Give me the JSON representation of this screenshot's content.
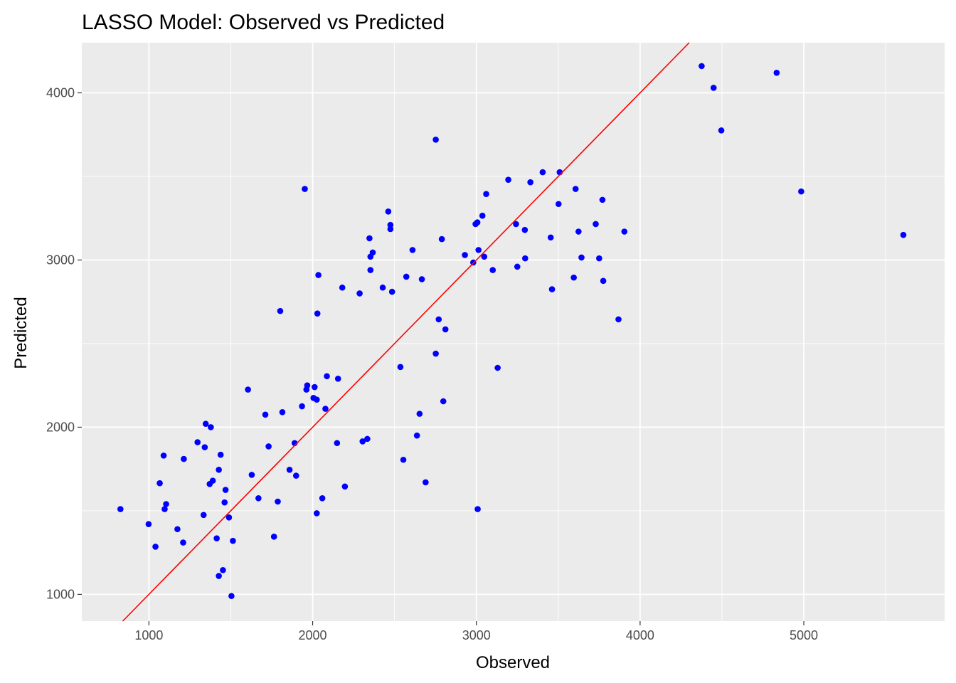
{
  "chart_data": {
    "type": "scatter",
    "title": "LASSO Model: Observed vs Predicted",
    "xlabel": "Observed",
    "ylabel": "Predicted",
    "xlim": [
      590,
      5860
    ],
    "ylim": [
      840,
      4300
    ],
    "x_ticks": [
      1000,
      2000,
      3000,
      4000,
      5000
    ],
    "x_tick_labels": [
      "1000",
      "2000",
      "3000",
      "4000",
      "5000"
    ],
    "y_ticks": [
      1000,
      2000,
      3000,
      4000
    ],
    "y_tick_labels": [
      "1000",
      "2000",
      "3000",
      "4000"
    ],
    "grid": true,
    "background": "#ebebeb",
    "point_color": "#0000ff",
    "line_color": "#ff0000",
    "reference_line": {
      "slope": 1,
      "intercept": 0
    },
    "series": [
      {
        "points": [
          [
            826,
            1510
          ],
          [
            998,
            1420
          ],
          [
            1040,
            1285
          ],
          [
            1066,
            1665
          ],
          [
            1090,
            1830
          ],
          [
            1096,
            1510
          ],
          [
            1105,
            1540
          ],
          [
            1174,
            1390
          ],
          [
            1209,
            1310
          ],
          [
            1213,
            1810
          ],
          [
            1297,
            1910
          ],
          [
            1334,
            1475
          ],
          [
            1341,
            1880
          ],
          [
            1347,
            2020
          ],
          [
            1371,
            1660
          ],
          [
            1378,
            2000
          ],
          [
            1390,
            1680
          ],
          [
            1414,
            1335
          ],
          [
            1427,
            1745
          ],
          [
            1427,
            1110
          ],
          [
            1438,
            1835
          ],
          [
            1452,
            1145
          ],
          [
            1462,
            1550
          ],
          [
            1468,
            1625
          ],
          [
            1489,
            1460
          ],
          [
            1504,
            990
          ],
          [
            1513,
            1320
          ],
          [
            1605,
            2225
          ],
          [
            1628,
            1715
          ],
          [
            1669,
            1575
          ],
          [
            1711,
            2075
          ],
          [
            1731,
            1885
          ],
          [
            1764,
            1345
          ],
          [
            1787,
            1555
          ],
          [
            1802,
            2695
          ],
          [
            1815,
            2090
          ],
          [
            1859,
            1745
          ],
          [
            1890,
            1905
          ],
          [
            1899,
            1710
          ],
          [
            1935,
            2125
          ],
          [
            1952,
            3425
          ],
          [
            1962,
            2225
          ],
          [
            1967,
            2250
          ],
          [
            2005,
            2175
          ],
          [
            2012,
            2240
          ],
          [
            2025,
            1485
          ],
          [
            2025,
            2165
          ],
          [
            2029,
            2680
          ],
          [
            2035,
            2910
          ],
          [
            2059,
            1575
          ],
          [
            2078,
            2110
          ],
          [
            2087,
            2305
          ],
          [
            2149,
            1905
          ],
          [
            2155,
            2290
          ],
          [
            2181,
            2835
          ],
          [
            2197,
            1645
          ],
          [
            2287,
            2800
          ],
          [
            2305,
            1915
          ],
          [
            2334,
            1930
          ],
          [
            2347,
            3130
          ],
          [
            2353,
            3020
          ],
          [
            2353,
            2940
          ],
          [
            2367,
            3045
          ],
          [
            2428,
            2835
          ],
          [
            2462,
            3290
          ],
          [
            2475,
            3210
          ],
          [
            2475,
            3185
          ],
          [
            2485,
            2810
          ],
          [
            2536,
            2360
          ],
          [
            2554,
            1805
          ],
          [
            2572,
            2900
          ],
          [
            2610,
            3060
          ],
          [
            2637,
            1950
          ],
          [
            2653,
            2080
          ],
          [
            2667,
            2885
          ],
          [
            2690,
            1670
          ],
          [
            2752,
            3720
          ],
          [
            2752,
            2440
          ],
          [
            2770,
            2645
          ],
          [
            2789,
            3125
          ],
          [
            2798,
            2155
          ],
          [
            2811,
            2585
          ],
          [
            2930,
            3030
          ],
          [
            2981,
            2985
          ],
          [
            2995,
            3215
          ],
          [
            3006,
            3225
          ],
          [
            3008,
            1510
          ],
          [
            3013,
            3060
          ],
          [
            3037,
            3265
          ],
          [
            3048,
            3020
          ],
          [
            3060,
            3395
          ],
          [
            3100,
            2940
          ],
          [
            3130,
            2355
          ],
          [
            3195,
            3480
          ],
          [
            3242,
            3215
          ],
          [
            3250,
            2960
          ],
          [
            3296,
            3180
          ],
          [
            3298,
            3010
          ],
          [
            3330,
            3465
          ],
          [
            3405,
            3525
          ],
          [
            3454,
            3135
          ],
          [
            3462,
            2825
          ],
          [
            3502,
            3335
          ],
          [
            3509,
            3525
          ],
          [
            3595,
            2895
          ],
          [
            3606,
            3425
          ],
          [
            3624,
            3170
          ],
          [
            3642,
            3015
          ],
          [
            3729,
            3215
          ],
          [
            3750,
            3010
          ],
          [
            3770,
            3360
          ],
          [
            3775,
            2875
          ],
          [
            3868,
            2645
          ],
          [
            3904,
            3170
          ],
          [
            4376,
            4160
          ],
          [
            4449,
            4030
          ],
          [
            4496,
            3775
          ],
          [
            4834,
            4120
          ],
          [
            4984,
            3410
          ],
          [
            5608,
            3150
          ]
        ]
      }
    ]
  }
}
